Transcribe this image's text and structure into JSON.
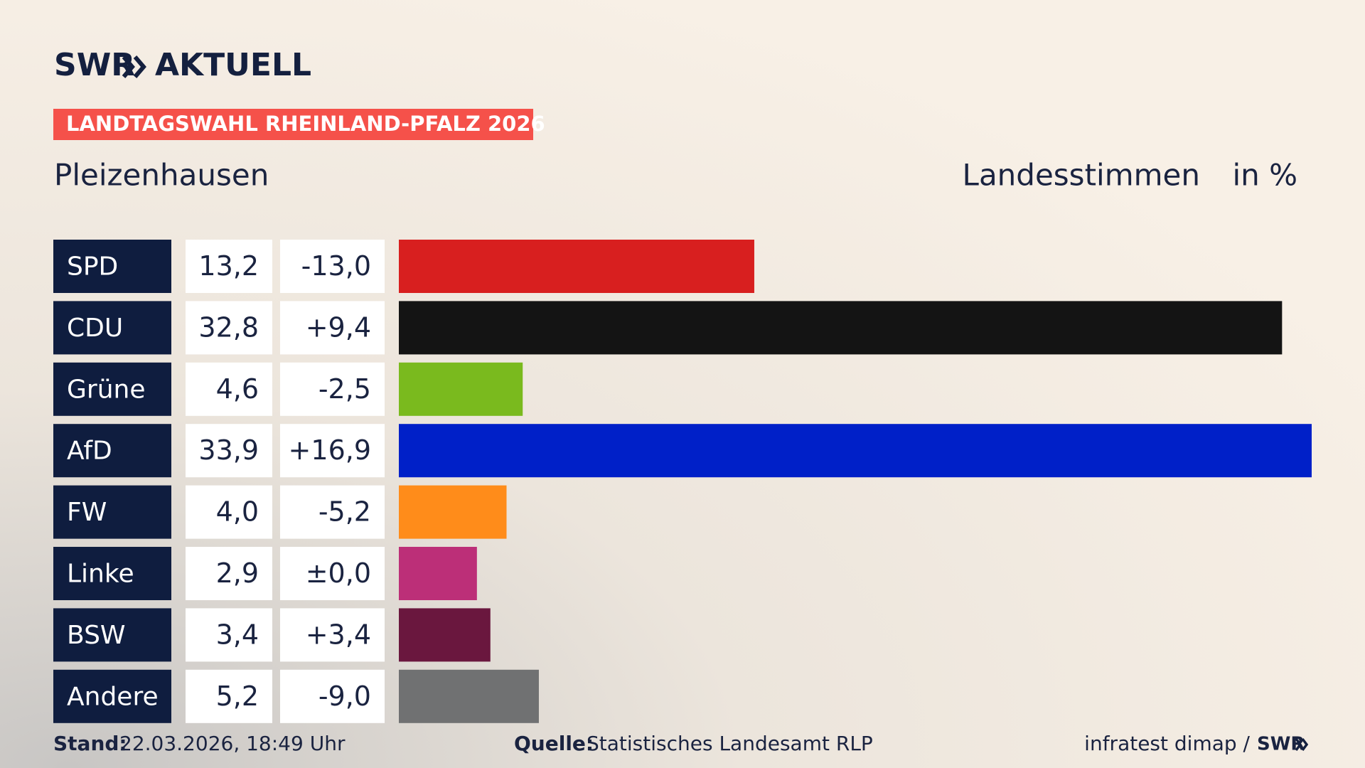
{
  "header": {
    "brand": "SWR",
    "brand_sub": "AKTUELL",
    "banner": "LANDTAGSWAHL RHEINLAND-PFALZ 2026"
  },
  "chart_data": {
    "type": "bar",
    "title": "Pleizenhausen",
    "subtitle": "Landesstimmen",
    "unit": "in %",
    "categories": [
      "SPD",
      "CDU",
      "Grüne",
      "AfD",
      "FW",
      "Linke",
      "BSW",
      "Andere"
    ],
    "values": [
      13.2,
      32.8,
      4.6,
      33.9,
      4.0,
      2.9,
      3.4,
      5.2
    ],
    "value_labels": [
      "13,2",
      "32,8",
      "4,6",
      "33,9",
      "4,0",
      "2,9",
      "3,4",
      "5,2"
    ],
    "changes": [
      -13.0,
      9.4,
      -2.5,
      16.9,
      -5.2,
      0,
      3.4,
      -9.0
    ],
    "change_labels": [
      "-13,0",
      "+9,4",
      "-2,5",
      "+16,9",
      "-5,2",
      "±0,0",
      "+3,4",
      "-9,0"
    ],
    "colors": [
      "#d81f1f",
      "#141414",
      "#7aba1e",
      "#0020c8",
      "#ff8c1a",
      "#bc2f78",
      "#6a173e",
      "#707172"
    ]
  },
  "footer": {
    "stand_label": "Stand:",
    "stand": "22.03.2026, 18:49 Uhr",
    "source_label": "Quelle:",
    "source": "Statistisches Landesamt RLP",
    "credit": "infratest dimap /",
    "credit_brand": "SWR"
  }
}
